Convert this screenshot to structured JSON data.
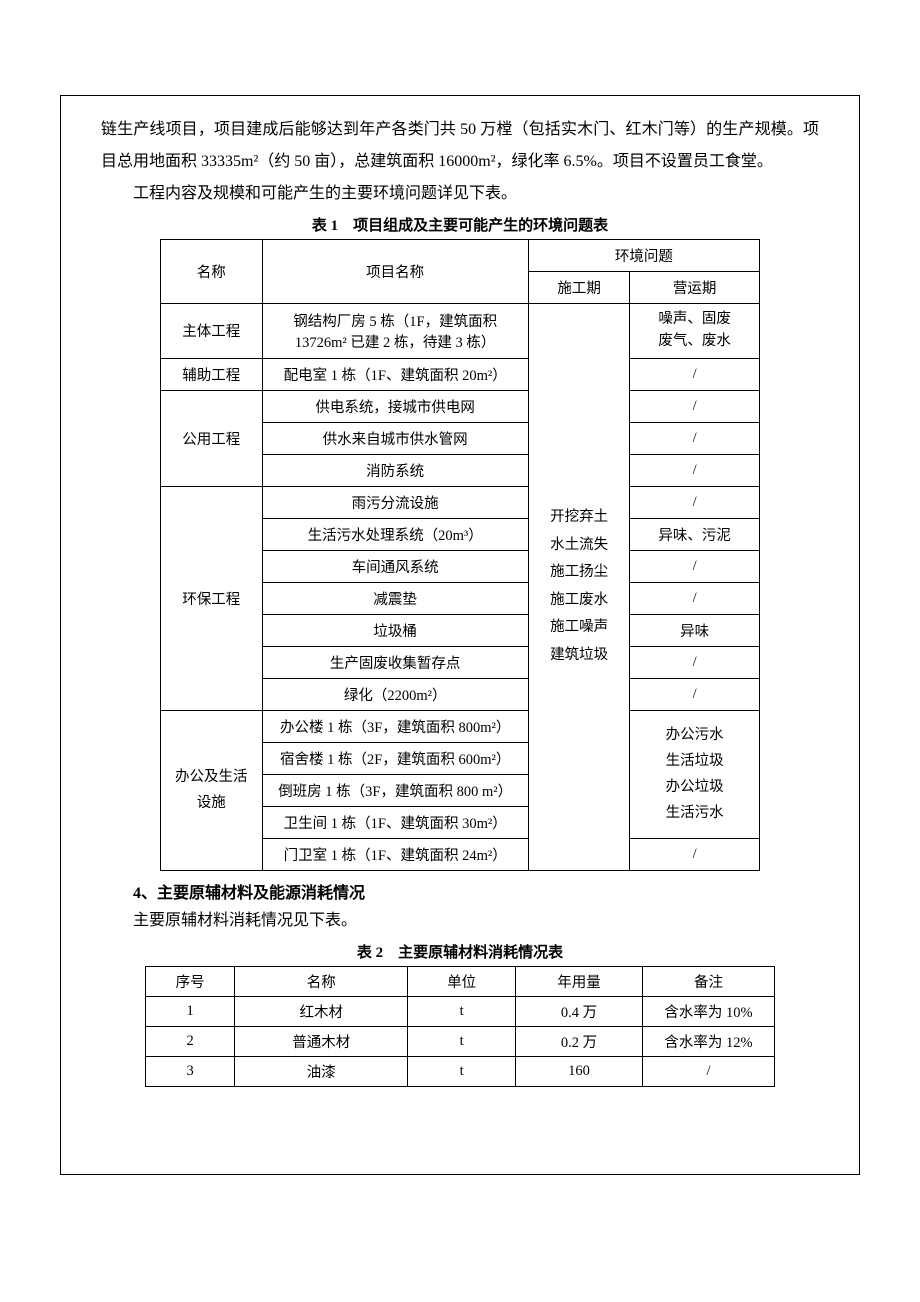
{
  "para1": "链生产线项目，项目建成后能够达到年产各类门共 50 万樘（包括实木门、红木门等）的生产规模。项目总用地面积 33335m²（约 50 亩），总建筑面积 16000m²，绿化率 6.5%。项目不设置员工食堂。",
  "para2": "工程内容及规模和可能产生的主要环境问题详见下表。",
  "table1_title": "表 1　项目组成及主要可能产生的环境问题表",
  "t1_h_name": "名称",
  "t1_h_item": "项目名称",
  "t1_h_env": "环境问题",
  "t1_h_env1": "施工期",
  "t1_h_env2": "营运期",
  "t1_r1_name": "主体工程",
  "t1_r1_item": "钢结构厂房 5 栋（1F，建筑面积 13726m² 已建 2 栋，待建 3 栋）",
  "t1_r1_env2": "噪声、固废废气、废水",
  "t1_r2_name": "辅助工程",
  "t1_r2_item": "配电室 1 栋（1F、建筑面积 20m²）",
  "t1_r2_env2": "/",
  "t1_r3_name": "公用工程",
  "t1_r3_item": "供电系统，接城市供电网",
  "t1_r3_env2": "/",
  "t1_r4_item": "供水来自城市供水管网",
  "t1_r4_env2": "/",
  "t1_r5_item": "消防系统",
  "t1_r5_env2": "/",
  "t1_r6_name": "环保工程",
  "t1_r6_item": "雨污分流设施",
  "t1_r6_env2": "/",
  "t1_r7_item": "生活污水处理系统（20m³）",
  "t1_r7_env2": "异味、污泥",
  "t1_r8_item": "车间通风系统",
  "t1_r8_env2": "/",
  "t1_r9_item": "减震垫",
  "t1_r9_env2": "/",
  "t1_r10_item": "垃圾桶",
  "t1_r10_env2": "异味",
  "t1_r11_item": "生产固废收集暂存点",
  "t1_r11_env2": "/",
  "t1_r12_item": "绿化（2200m²）",
  "t1_r12_env2": "/",
  "t1_r13_name": "办公及生活设施",
  "t1_r13_item": "办公楼 1 栋（3F，建筑面积 800m²）",
  "t1_r13_env2": "办公污水生活垃圾办公垃圾生活污水",
  "t1_r14_item": "宿舍楼 1 栋（2F，建筑面积 600m²）",
  "t1_r15_item": "倒班房 1 栋（3F，建筑面积 800 m²）",
  "t1_r16_item": "卫生间 1 栋（1F、建筑面积 30m²）",
  "t1_r17_item": "门卫室 1 栋（1F、建筑面积 24m²）",
  "t1_r17_env2": "/",
  "t1_env1_merged": "开挖弃土水土流失施工扬尘施工废水施工噪声建筑垃圾",
  "section4_heading": "4、主要原辅材料及能源消耗情况",
  "para3": "主要原辅材料消耗情况见下表。",
  "table2_title": "表 2　主要原辅材料消耗情况表",
  "t2_h_seq": "序号",
  "t2_h_name": "名称",
  "t2_h_unit": "单位",
  "t2_h_usage": "年用量",
  "t2_h_note": "备注",
  "t2_rows": [
    {
      "seq": "1",
      "name": "红木材",
      "unit": "t",
      "usage": "0.4 万",
      "note": "含水率为 10%"
    },
    {
      "seq": "2",
      "name": "普通木材",
      "unit": "t",
      "usage": "0.2 万",
      "note": "含水率为 12%"
    },
    {
      "seq": "3",
      "name": "油漆",
      "unit": "t",
      "usage": "160",
      "note": "/"
    }
  ]
}
